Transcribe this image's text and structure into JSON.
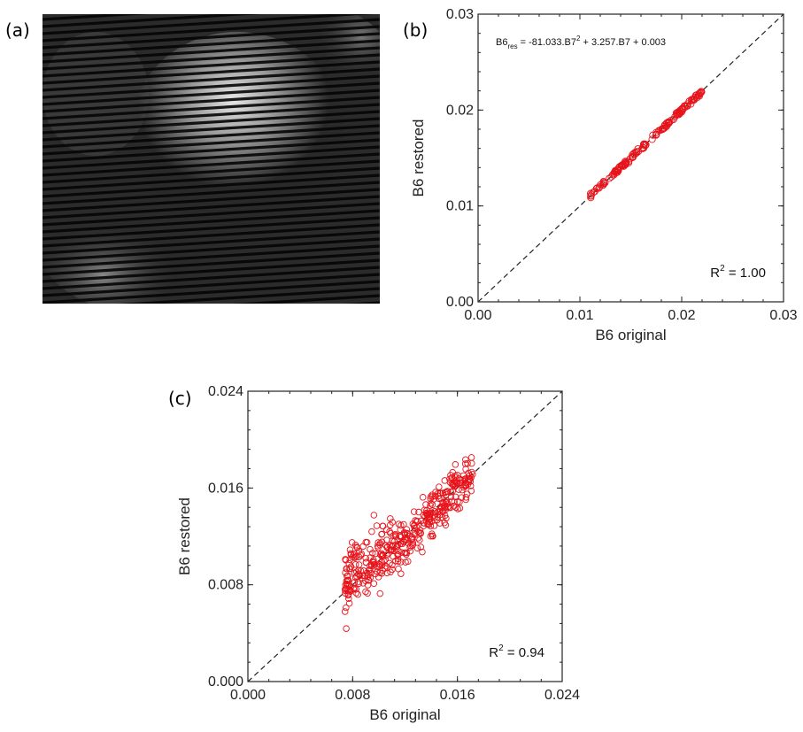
{
  "panels": {
    "a": {
      "label": "(a)"
    },
    "b": {
      "label": "(b)"
    },
    "c": {
      "label": "(c)"
    }
  },
  "image_a": {
    "description_icon": "striped-thermal-image"
  },
  "chart_data": [
    {
      "id": "b",
      "type": "scatter",
      "xlabel": "B6 original",
      "ylabel": "B6 restored",
      "xlim": [
        0.0,
        0.03
      ],
      "ylim": [
        0.0,
        0.03
      ],
      "xticks": [
        "0.00",
        "0.01",
        "0.02",
        "0.03"
      ],
      "yticks": [
        "0.00",
        "0.01",
        "0.02",
        "0.03"
      ],
      "equation": {
        "prefix": "B6",
        "subscript": "res",
        "text": "= -81.033.B7",
        "sup": "2",
        "rest": "+ 3.257.B7 + 0.003"
      },
      "r2": {
        "prefix": "R",
        "sup": "2",
        "rest": "= 1.00"
      },
      "marker_color": "#e8141b",
      "reference_line": "1:1 dashed",
      "x_range_points": [
        0.011,
        0.022
      ],
      "n_points": 150,
      "scatter": 0.00012
    },
    {
      "id": "c",
      "type": "scatter",
      "xlabel": "B6 original",
      "ylabel": "B6 restored",
      "xlim": [
        0.0,
        0.024
      ],
      "ylim": [
        0.0,
        0.024
      ],
      "xticks": [
        "0.000",
        "0.008",
        "0.016",
        "0.024"
      ],
      "yticks": [
        "0.000",
        "0.008",
        "0.016",
        "0.024"
      ],
      "r2": {
        "prefix": "R",
        "sup": "2",
        "rest": "= 0.94"
      },
      "marker_color": "#e8141b",
      "reference_line": "1:1 dashed",
      "x_range_points": [
        0.0074,
        0.0172
      ],
      "n_points": 420,
      "scatter": 0.0009
    }
  ]
}
